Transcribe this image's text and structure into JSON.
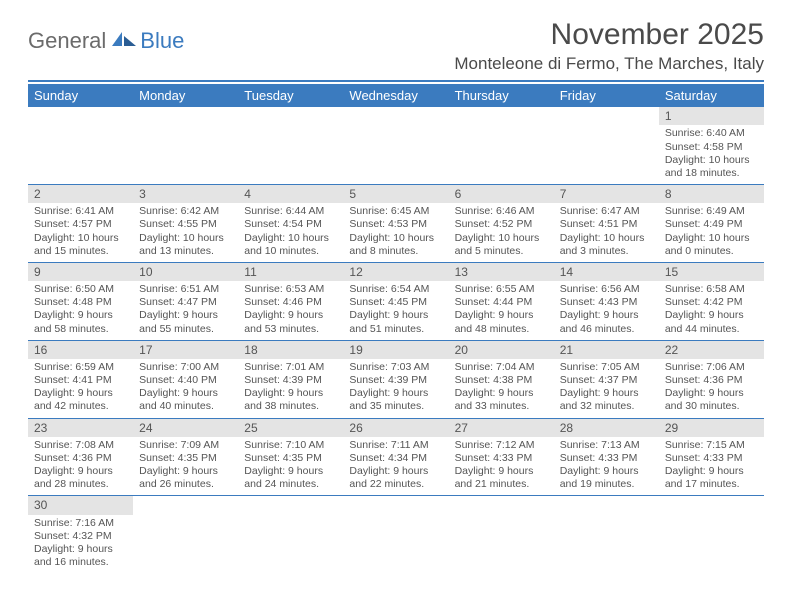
{
  "logo": {
    "word1": "General",
    "word2": "Blue"
  },
  "title": {
    "month": "November 2025",
    "location": "Monteleone di Fermo, The Marches, Italy"
  },
  "colors": {
    "accent": "#3b7bbf",
    "header_text": "#ffffff",
    "daybar_bg": "#e4e4e4",
    "text": "#555555"
  },
  "weekdays": [
    "Sunday",
    "Monday",
    "Tuesday",
    "Wednesday",
    "Thursday",
    "Friday",
    "Saturday"
  ],
  "weeks": [
    [
      null,
      null,
      null,
      null,
      null,
      null,
      {
        "n": "1",
        "sr": "Sunrise: 6:40 AM",
        "ss": "Sunset: 4:58 PM",
        "d1": "Daylight: 10 hours",
        "d2": "and 18 minutes."
      }
    ],
    [
      {
        "n": "2",
        "sr": "Sunrise: 6:41 AM",
        "ss": "Sunset: 4:57 PM",
        "d1": "Daylight: 10 hours",
        "d2": "and 15 minutes."
      },
      {
        "n": "3",
        "sr": "Sunrise: 6:42 AM",
        "ss": "Sunset: 4:55 PM",
        "d1": "Daylight: 10 hours",
        "d2": "and 13 minutes."
      },
      {
        "n": "4",
        "sr": "Sunrise: 6:44 AM",
        "ss": "Sunset: 4:54 PM",
        "d1": "Daylight: 10 hours",
        "d2": "and 10 minutes."
      },
      {
        "n": "5",
        "sr": "Sunrise: 6:45 AM",
        "ss": "Sunset: 4:53 PM",
        "d1": "Daylight: 10 hours",
        "d2": "and 8 minutes."
      },
      {
        "n": "6",
        "sr": "Sunrise: 6:46 AM",
        "ss": "Sunset: 4:52 PM",
        "d1": "Daylight: 10 hours",
        "d2": "and 5 minutes."
      },
      {
        "n": "7",
        "sr": "Sunrise: 6:47 AM",
        "ss": "Sunset: 4:51 PM",
        "d1": "Daylight: 10 hours",
        "d2": "and 3 minutes."
      },
      {
        "n": "8",
        "sr": "Sunrise: 6:49 AM",
        "ss": "Sunset: 4:49 PM",
        "d1": "Daylight: 10 hours",
        "d2": "and 0 minutes."
      }
    ],
    [
      {
        "n": "9",
        "sr": "Sunrise: 6:50 AM",
        "ss": "Sunset: 4:48 PM",
        "d1": "Daylight: 9 hours",
        "d2": "and 58 minutes."
      },
      {
        "n": "10",
        "sr": "Sunrise: 6:51 AM",
        "ss": "Sunset: 4:47 PM",
        "d1": "Daylight: 9 hours",
        "d2": "and 55 minutes."
      },
      {
        "n": "11",
        "sr": "Sunrise: 6:53 AM",
        "ss": "Sunset: 4:46 PM",
        "d1": "Daylight: 9 hours",
        "d2": "and 53 minutes."
      },
      {
        "n": "12",
        "sr": "Sunrise: 6:54 AM",
        "ss": "Sunset: 4:45 PM",
        "d1": "Daylight: 9 hours",
        "d2": "and 51 minutes."
      },
      {
        "n": "13",
        "sr": "Sunrise: 6:55 AM",
        "ss": "Sunset: 4:44 PM",
        "d1": "Daylight: 9 hours",
        "d2": "and 48 minutes."
      },
      {
        "n": "14",
        "sr": "Sunrise: 6:56 AM",
        "ss": "Sunset: 4:43 PM",
        "d1": "Daylight: 9 hours",
        "d2": "and 46 minutes."
      },
      {
        "n": "15",
        "sr": "Sunrise: 6:58 AM",
        "ss": "Sunset: 4:42 PM",
        "d1": "Daylight: 9 hours",
        "d2": "and 44 minutes."
      }
    ],
    [
      {
        "n": "16",
        "sr": "Sunrise: 6:59 AM",
        "ss": "Sunset: 4:41 PM",
        "d1": "Daylight: 9 hours",
        "d2": "and 42 minutes."
      },
      {
        "n": "17",
        "sr": "Sunrise: 7:00 AM",
        "ss": "Sunset: 4:40 PM",
        "d1": "Daylight: 9 hours",
        "d2": "and 40 minutes."
      },
      {
        "n": "18",
        "sr": "Sunrise: 7:01 AM",
        "ss": "Sunset: 4:39 PM",
        "d1": "Daylight: 9 hours",
        "d2": "and 38 minutes."
      },
      {
        "n": "19",
        "sr": "Sunrise: 7:03 AM",
        "ss": "Sunset: 4:39 PM",
        "d1": "Daylight: 9 hours",
        "d2": "and 35 minutes."
      },
      {
        "n": "20",
        "sr": "Sunrise: 7:04 AM",
        "ss": "Sunset: 4:38 PM",
        "d1": "Daylight: 9 hours",
        "d2": "and 33 minutes."
      },
      {
        "n": "21",
        "sr": "Sunrise: 7:05 AM",
        "ss": "Sunset: 4:37 PM",
        "d1": "Daylight: 9 hours",
        "d2": "and 32 minutes."
      },
      {
        "n": "22",
        "sr": "Sunrise: 7:06 AM",
        "ss": "Sunset: 4:36 PM",
        "d1": "Daylight: 9 hours",
        "d2": "and 30 minutes."
      }
    ],
    [
      {
        "n": "23",
        "sr": "Sunrise: 7:08 AM",
        "ss": "Sunset: 4:36 PM",
        "d1": "Daylight: 9 hours",
        "d2": "and 28 minutes."
      },
      {
        "n": "24",
        "sr": "Sunrise: 7:09 AM",
        "ss": "Sunset: 4:35 PM",
        "d1": "Daylight: 9 hours",
        "d2": "and 26 minutes."
      },
      {
        "n": "25",
        "sr": "Sunrise: 7:10 AM",
        "ss": "Sunset: 4:35 PM",
        "d1": "Daylight: 9 hours",
        "d2": "and 24 minutes."
      },
      {
        "n": "26",
        "sr": "Sunrise: 7:11 AM",
        "ss": "Sunset: 4:34 PM",
        "d1": "Daylight: 9 hours",
        "d2": "and 22 minutes."
      },
      {
        "n": "27",
        "sr": "Sunrise: 7:12 AM",
        "ss": "Sunset: 4:33 PM",
        "d1": "Daylight: 9 hours",
        "d2": "and 21 minutes."
      },
      {
        "n": "28",
        "sr": "Sunrise: 7:13 AM",
        "ss": "Sunset: 4:33 PM",
        "d1": "Daylight: 9 hours",
        "d2": "and 19 minutes."
      },
      {
        "n": "29",
        "sr": "Sunrise: 7:15 AM",
        "ss": "Sunset: 4:33 PM",
        "d1": "Daylight: 9 hours",
        "d2": "and 17 minutes."
      }
    ],
    [
      {
        "n": "30",
        "sr": "Sunrise: 7:16 AM",
        "ss": "Sunset: 4:32 PM",
        "d1": "Daylight: 9 hours",
        "d2": "and 16 minutes."
      },
      null,
      null,
      null,
      null,
      null,
      null
    ]
  ]
}
